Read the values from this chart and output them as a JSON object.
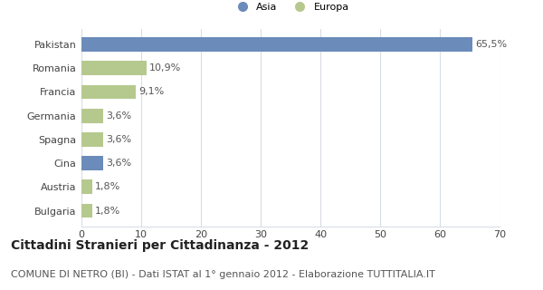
{
  "categories": [
    "Pakistan",
    "Romania",
    "Francia",
    "Germania",
    "Spagna",
    "Cina",
    "Austria",
    "Bulgaria"
  ],
  "values": [
    65.5,
    10.9,
    9.1,
    3.6,
    3.6,
    3.6,
    1.8,
    1.8
  ],
  "labels": [
    "65,5%",
    "10,9%",
    "9,1%",
    "3,6%",
    "3,6%",
    "3,6%",
    "1,8%",
    "1,8%"
  ],
  "colors": [
    "#6b8cba",
    "#b5c98e",
    "#b5c98e",
    "#b5c98e",
    "#b5c98e",
    "#6b8cba",
    "#b5c98e",
    "#b5c98e"
  ],
  "legend_labels": [
    "Asia",
    "Europa"
  ],
  "legend_colors": [
    "#6b8cba",
    "#b5c98e"
  ],
  "title": "Cittadini Stranieri per Cittadinanza - 2012",
  "subtitle": "COMUNE DI NETRO (BI) - Dati ISTAT al 1° gennaio 2012 - Elaborazione TUTTITALIA.IT",
  "xlim": [
    0,
    70
  ],
  "xticks": [
    0,
    10,
    20,
    30,
    40,
    50,
    60,
    70
  ],
  "background_color": "#ffffff",
  "grid_color": "#d8dde6",
  "title_fontsize": 10,
  "subtitle_fontsize": 8,
  "label_fontsize": 8,
  "tick_fontsize": 8,
  "bar_height": 0.6
}
